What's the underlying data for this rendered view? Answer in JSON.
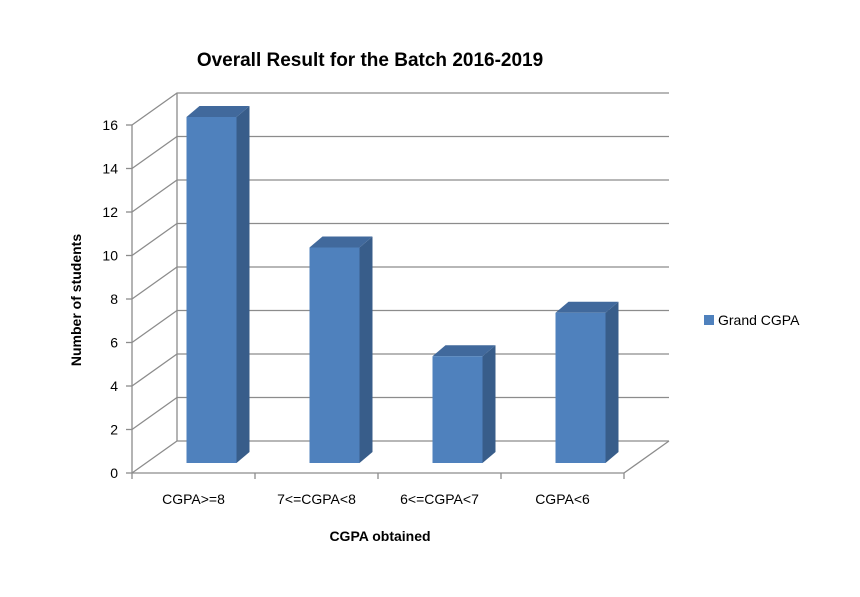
{
  "chart_data": {
    "type": "bar",
    "title": "Overall Result for the Batch 2016-2019",
    "xlabel": "CGPA obtained",
    "ylabel": "Number of students",
    "categories": [
      "CGPA>=8",
      "7<=CGPA<8",
      "6<=CGPA<7",
      "CGPA<6"
    ],
    "series": [
      {
        "name": "Grand CGPA",
        "values": [
          16,
          10,
          5,
          7
        ]
      }
    ],
    "ylim": [
      0,
      16
    ],
    "yticks": [
      0,
      2,
      4,
      6,
      8,
      10,
      12,
      14,
      16
    ],
    "grid": true,
    "legend_position": "right",
    "colors": {
      "bar_front": "#4f81bd",
      "bar_side": "#385d8a",
      "bar_top": "#41699c",
      "gridline": "#8c8c8c"
    }
  }
}
